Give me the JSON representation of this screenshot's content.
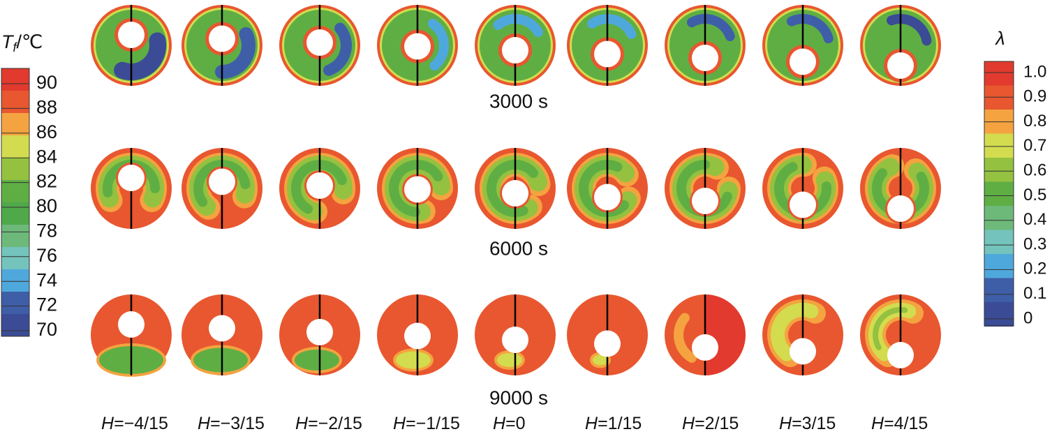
{
  "colorbar_left": {
    "title": {
      "symbol": "T",
      "subscript": "f",
      "unit": "/℃"
    },
    "labels": [
      "90",
      "88",
      "86",
      "84",
      "82",
      "80",
      "78",
      "76",
      "74",
      "72",
      "70"
    ]
  },
  "colorbar_right": {
    "title": "λ",
    "labels": [
      "1.0",
      "0.9",
      "0.8",
      "0.7",
      "0.6",
      "0.5",
      "0.4",
      "0.3",
      "0.2",
      "0.1",
      "0"
    ]
  },
  "rows": [
    "3000 s",
    "6000 s",
    "9000 s"
  ],
  "columns": [
    {
      "symbol": "H",
      "value": "=−4/15"
    },
    {
      "symbol": "H",
      "value": "=−3/15"
    },
    {
      "symbol": "H",
      "value": "=−2/15"
    },
    {
      "symbol": "H",
      "value": "=−1/15"
    },
    {
      "symbol": "H",
      "value": "=0"
    },
    {
      "symbol": "H",
      "value": "=1/15"
    },
    {
      "symbol": "H",
      "value": "=2/15"
    },
    {
      "symbol": "H",
      "value": "=3/15"
    },
    {
      "symbol": "H",
      "value": "=4/15"
    }
  ]
}
